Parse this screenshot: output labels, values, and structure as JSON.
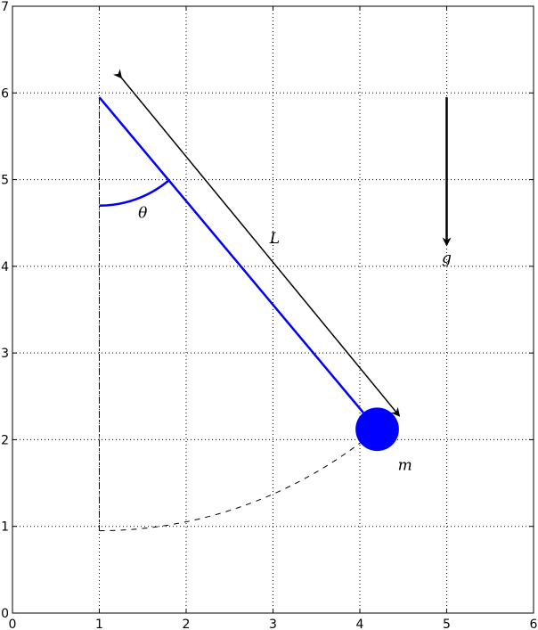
{
  "chart_data": {
    "type": "diagram",
    "xlim": [
      0,
      6
    ],
    "ylim": [
      0,
      7
    ],
    "grid": true,
    "x_ticks": [
      "0",
      "1",
      "2",
      "3",
      "4",
      "5",
      "6"
    ],
    "y_ticks": [
      "0",
      "1",
      "2",
      "3",
      "4",
      "5",
      "6",
      "7"
    ],
    "pivot": [
      1,
      5.95
    ],
    "bob": [
      4.2,
      2.12
    ],
    "bob_radius": 0.25,
    "rest_point": [
      1,
      0.95
    ],
    "angle_arc_radius": 1.25,
    "length_arrow": {
      "from": [
        1.25,
        6.18
      ],
      "to": [
        4.45,
        2.28
      ]
    },
    "gravity_arrow": {
      "from": [
        5,
        5.95
      ],
      "to": [
        5,
        4.25
      ]
    },
    "labels": {
      "theta": {
        "text": "θ",
        "at": [
          1.5,
          4.62
        ]
      },
      "length": {
        "text": "L",
        "at": [
          3.02,
          4.33
        ]
      },
      "gravity": {
        "text": "g",
        "at": [
          5,
          4.1
        ]
      },
      "mass": {
        "text": "m",
        "at": [
          4.52,
          1.71
        ]
      }
    },
    "colors": {
      "pendulum": "#0000ff",
      "arrows": "#000000"
    }
  }
}
